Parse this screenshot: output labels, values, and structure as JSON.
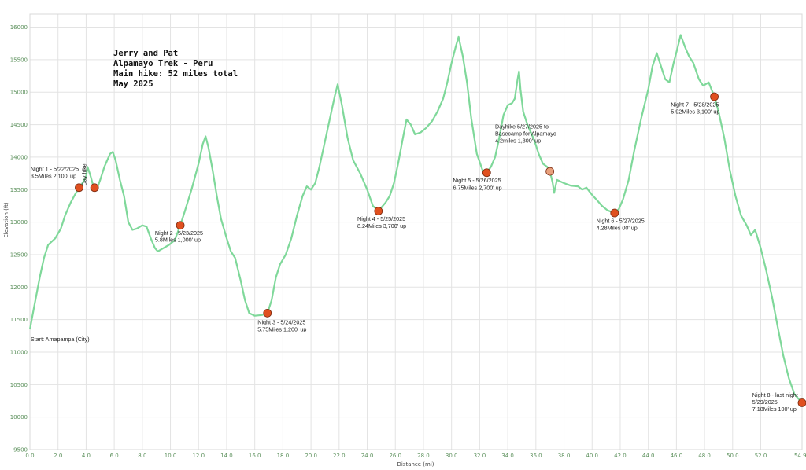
{
  "colors": {
    "line": "#7fd89a",
    "marker": "#e0501f",
    "marker_light": "#e8a07c",
    "marker_stroke": "#7a2a10",
    "tick": "#5a8f5a"
  },
  "chart_data": {
    "type": "line",
    "title_lines": [
      "Jerry and Pat",
      "Alpamayo Trek - Peru",
      "Main hike: 52 miles total",
      "May 2025"
    ],
    "xlabel": "Distance (mi)",
    "ylabel": "Elevation (ft)",
    "xlim": [
      0,
      54.94
    ],
    "ylim": [
      9500,
      16200
    ],
    "x_ticks": [
      "0.0",
      "2.0",
      "4.0",
      "6.0",
      "8.0",
      "10.0",
      "12.0",
      "14.0",
      "16.0",
      "18.0",
      "20.0",
      "22.0",
      "24.0",
      "26.0",
      "28.0",
      "30.0",
      "32.0",
      "34.0",
      "36.0",
      "38.0",
      "40.0",
      "42.0",
      "44.0",
      "46.0",
      "48.0",
      "50.0",
      "52.0",
      "54.94"
    ],
    "x_tick_values": [
      0,
      2,
      4,
      6,
      8,
      10,
      12,
      14,
      16,
      18,
      20,
      22,
      24,
      26,
      28,
      30,
      32,
      34,
      36,
      38,
      40,
      42,
      44,
      46,
      48,
      50,
      52,
      54.94
    ],
    "y_ticks": [
      "9500",
      "10000",
      "10500",
      "11000",
      "11500",
      "12000",
      "12500",
      "13000",
      "13500",
      "14000",
      "14500",
      "15000",
      "15500",
      "16000"
    ],
    "y_tick_values": [
      9500,
      10000,
      10500,
      11000,
      11500,
      12000,
      12500,
      13000,
      13500,
      14000,
      14500,
      15000,
      15500,
      16000
    ],
    "series": [
      {
        "points": [
          [
            0,
            11350
          ],
          [
            0.3,
            11700
          ],
          [
            0.7,
            12150
          ],
          [
            1.0,
            12450
          ],
          [
            1.3,
            12650
          ],
          [
            1.8,
            12750
          ],
          [
            2.2,
            12900
          ],
          [
            2.5,
            13100
          ],
          [
            2.9,
            13300
          ],
          [
            3.2,
            13420
          ],
          [
            3.5,
            13530
          ],
          [
            3.8,
            13620
          ],
          [
            4.0,
            13700
          ],
          [
            4.1,
            13850
          ],
          [
            4.3,
            13720
          ],
          [
            4.5,
            13560
          ],
          [
            4.8,
            13530
          ],
          [
            5.0,
            13650
          ],
          [
            5.3,
            13850
          ],
          [
            5.5,
            13950
          ],
          [
            5.7,
            14050
          ],
          [
            5.9,
            14080
          ],
          [
            6.1,
            13950
          ],
          [
            6.4,
            13650
          ],
          [
            6.7,
            13400
          ],
          [
            7.0,
            13000
          ],
          [
            7.3,
            12880
          ],
          [
            7.6,
            12900
          ],
          [
            8.0,
            12950
          ],
          [
            8.3,
            12930
          ],
          [
            8.6,
            12750
          ],
          [
            8.9,
            12600
          ],
          [
            9.1,
            12550
          ],
          [
            9.5,
            12600
          ],
          [
            9.9,
            12650
          ],
          [
            10.3,
            12720
          ],
          [
            10.7,
            12950
          ],
          [
            11.0,
            13150
          ],
          [
            11.5,
            13500
          ],
          [
            12.0,
            13900
          ],
          [
            12.3,
            14200
          ],
          [
            12.5,
            14320
          ],
          [
            12.7,
            14150
          ],
          [
            13.0,
            13800
          ],
          [
            13.3,
            13400
          ],
          [
            13.6,
            13050
          ],
          [
            14.0,
            12750
          ],
          [
            14.3,
            12550
          ],
          [
            14.6,
            12450
          ],
          [
            15.0,
            12100
          ],
          [
            15.3,
            11800
          ],
          [
            15.6,
            11600
          ],
          [
            16.0,
            11560
          ],
          [
            16.5,
            11570
          ],
          [
            16.9,
            11600
          ],
          [
            17.2,
            11800
          ],
          [
            17.5,
            12150
          ],
          [
            17.8,
            12350
          ],
          [
            18.2,
            12500
          ],
          [
            18.6,
            12750
          ],
          [
            19.0,
            13100
          ],
          [
            19.4,
            13400
          ],
          [
            19.7,
            13550
          ],
          [
            20.0,
            13500
          ],
          [
            20.3,
            13600
          ],
          [
            20.6,
            13850
          ],
          [
            21.0,
            14250
          ],
          [
            21.4,
            14650
          ],
          [
            21.7,
            14950
          ],
          [
            21.9,
            15120
          ],
          [
            22.2,
            14800
          ],
          [
            22.6,
            14300
          ],
          [
            23.0,
            13950
          ],
          [
            23.5,
            13750
          ],
          [
            24.0,
            13500
          ],
          [
            24.4,
            13250
          ],
          [
            24.8,
            13170
          ],
          [
            25.3,
            13300
          ],
          [
            25.6,
            13400
          ],
          [
            25.9,
            13600
          ],
          [
            26.2,
            13900
          ],
          [
            26.5,
            14250
          ],
          [
            26.8,
            14580
          ],
          [
            27.1,
            14500
          ],
          [
            27.4,
            14350
          ],
          [
            27.8,
            14380
          ],
          [
            28.2,
            14450
          ],
          [
            28.6,
            14550
          ],
          [
            29.0,
            14700
          ],
          [
            29.4,
            14900
          ],
          [
            29.7,
            15150
          ],
          [
            30.0,
            15450
          ],
          [
            30.3,
            15700
          ],
          [
            30.5,
            15850
          ],
          [
            30.8,
            15550
          ],
          [
            31.1,
            15150
          ],
          [
            31.4,
            14600
          ],
          [
            31.8,
            14050
          ],
          [
            32.2,
            13800
          ],
          [
            32.5,
            13760
          ],
          [
            32.8,
            13850
          ],
          [
            33.1,
            14000
          ],
          [
            33.4,
            14300
          ],
          [
            33.7,
            14650
          ],
          [
            34.0,
            14800
          ],
          [
            34.3,
            14830
          ],
          [
            34.5,
            14900
          ],
          [
            34.7,
            15200
          ],
          [
            34.8,
            15320
          ],
          [
            34.9,
            15050
          ],
          [
            35.1,
            14700
          ],
          [
            35.4,
            14500
          ],
          [
            35.7,
            14350
          ],
          [
            35.9,
            14250
          ],
          [
            36.2,
            14050
          ],
          [
            36.5,
            13900
          ],
          [
            36.8,
            13850
          ],
          [
            37.0,
            13780
          ],
          [
            37.2,
            13600
          ],
          [
            37.3,
            13450
          ],
          [
            37.5,
            13650
          ],
          [
            38.0,
            13600
          ],
          [
            38.5,
            13560
          ],
          [
            39.0,
            13550
          ],
          [
            39.3,
            13500
          ],
          [
            39.6,
            13530
          ],
          [
            40.0,
            13420
          ],
          [
            40.3,
            13350
          ],
          [
            40.7,
            13250
          ],
          [
            41.1,
            13180
          ],
          [
            41.6,
            13140
          ],
          [
            41.9,
            13200
          ],
          [
            42.2,
            13350
          ],
          [
            42.6,
            13650
          ],
          [
            43.0,
            14100
          ],
          [
            43.5,
            14600
          ],
          [
            44.0,
            15050
          ],
          [
            44.3,
            15400
          ],
          [
            44.6,
            15600
          ],
          [
            44.9,
            15400
          ],
          [
            45.2,
            15200
          ],
          [
            45.5,
            15150
          ],
          [
            45.8,
            15450
          ],
          [
            46.1,
            15700
          ],
          [
            46.3,
            15880
          ],
          [
            46.6,
            15700
          ],
          [
            46.9,
            15550
          ],
          [
            47.2,
            15450
          ],
          [
            47.6,
            15200
          ],
          [
            47.9,
            15100
          ],
          [
            48.3,
            15150
          ],
          [
            48.7,
            14930
          ],
          [
            49.0,
            14700
          ],
          [
            49.4,
            14300
          ],
          [
            49.8,
            13800
          ],
          [
            50.2,
            13400
          ],
          [
            50.6,
            13100
          ],
          [
            51.0,
            12950
          ],
          [
            51.3,
            12800
          ],
          [
            51.6,
            12880
          ],
          [
            52.0,
            12600
          ],
          [
            52.4,
            12250
          ],
          [
            52.8,
            11850
          ],
          [
            53.2,
            11400
          ],
          [
            53.6,
            10950
          ],
          [
            54.0,
            10600
          ],
          [
            54.4,
            10350
          ],
          [
            54.94,
            10220
          ]
        ]
      }
    ],
    "markers": [
      {
        "x": 3.5,
        "y": 13530,
        "style": "dark"
      },
      {
        "x": 4.6,
        "y": 13530,
        "style": "dark"
      },
      {
        "x": 10.7,
        "y": 12950,
        "style": "dark"
      },
      {
        "x": 16.9,
        "y": 11600,
        "style": "dark"
      },
      {
        "x": 24.8,
        "y": 13170,
        "style": "dark"
      },
      {
        "x": 32.5,
        "y": 13760,
        "style": "dark"
      },
      {
        "x": 37.0,
        "y": 13780,
        "style": "light"
      },
      {
        "x": 41.6,
        "y": 13140,
        "style": "dark"
      },
      {
        "x": 48.7,
        "y": 14930,
        "style": "dark"
      },
      {
        "x": 54.94,
        "y": 10220,
        "style": "dark"
      }
    ],
    "annotations": [
      {
        "text": "Night 1 - 5/22/2025",
        "x": 0.05,
        "y": 13790
      },
      {
        "text": "3.5Miles 2,100' up",
        "x": 0.05,
        "y": 13680
      },
      {
        "text": "Day hike",
        "x": 4.0,
        "y": 13560,
        "rotate": -90
      },
      {
        "text": "Night 2 - 5/23/2025",
        "x": 8.9,
        "y": 12800
      },
      {
        "text": "5.8Miles 1,000' up",
        "x": 8.9,
        "y": 12700
      },
      {
        "text": "Night 3 - 5/24/2025",
        "x": 16.2,
        "y": 11430
      },
      {
        "text": "5.75Miles 1,200' up",
        "x": 16.2,
        "y": 11320
      },
      {
        "text": "Night 4 - 5/25/2025",
        "x": 23.3,
        "y": 13020
      },
      {
        "text": "8.24Miles 3,700' up",
        "x": 23.3,
        "y": 12910
      },
      {
        "text": "Night 5 - 5/26/2025",
        "x": 30.1,
        "y": 13610
      },
      {
        "text": "6.75Miles 2,700' up",
        "x": 30.1,
        "y": 13500
      },
      {
        "text": "Dayhike 5/27/2025 to",
        "x": 33.1,
        "y": 14440
      },
      {
        "text": "Basecamp for Alpamayo",
        "x": 33.1,
        "y": 14330
      },
      {
        "text": "4.2miles 1,300' up",
        "x": 33.1,
        "y": 14220
      },
      {
        "text": "Night 6 - 5/27/2025",
        "x": 40.3,
        "y": 12990
      },
      {
        "text": "4.28Miles 00' up",
        "x": 40.3,
        "y": 12880
      },
      {
        "text": "Night 7 - 5/28/2025",
        "x": 45.6,
        "y": 14780
      },
      {
        "text": "5.92Miles 3,100' up",
        "x": 45.6,
        "y": 14670
      },
      {
        "text": "Start: Amapampa (City)",
        "x": 0.05,
        "y": 11170
      },
      {
        "text": "Night 8 - last night -",
        "x": 51.4,
        "y": 10310
      },
      {
        "text": "5/29/2025",
        "x": 51.4,
        "y": 10200
      },
      {
        "text": "7.18Miles 100' up",
        "x": 51.4,
        "y": 10090
      }
    ]
  }
}
